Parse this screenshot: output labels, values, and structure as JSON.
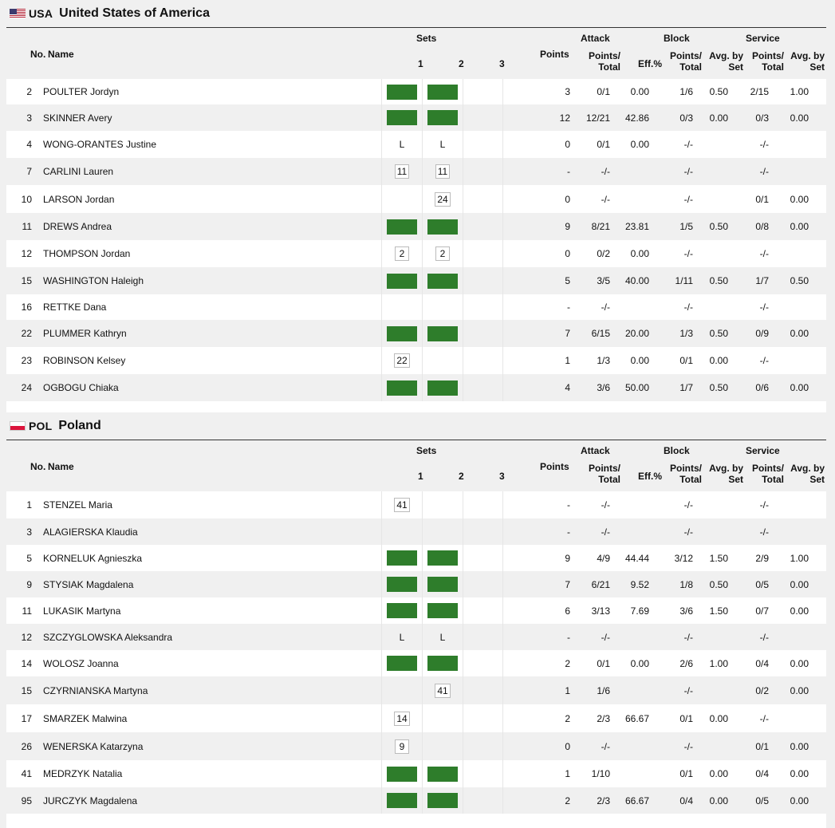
{
  "headers": {
    "no": "No.",
    "name": "Name",
    "sets": "Sets",
    "set1": "1",
    "set2": "2",
    "set3": "3",
    "points": "Points",
    "attack": "Attack",
    "attack_pt": "Points/",
    "attack_pt2": "Total",
    "eff": "Eff.%",
    "block": "Block",
    "block_pt": "Points/",
    "block_pt2": "Total",
    "block_avg": "Avg. by",
    "block_avg2": "Set",
    "service": "Service",
    "service_pt": "Points/",
    "service_pt2": "Total",
    "service_avg": "Avg. by",
    "service_avg2": "Set"
  },
  "teams": [
    {
      "code": "USA",
      "name": "United States of America",
      "flag": "flag-usa",
      "rows": [
        {
          "no": "2",
          "name": "POULTER Jordyn",
          "s1": {
            "t": "bar"
          },
          "s2": {
            "t": "bar"
          },
          "s3": {
            "t": ""
          },
          "points": "3",
          "att": "0/1",
          "eff": "0.00",
          "blk": "1/6",
          "blkavg": "0.50",
          "srv": "2/15",
          "srvavg": "1.00"
        },
        {
          "no": "3",
          "name": "SKINNER Avery",
          "s1": {
            "t": "bar"
          },
          "s2": {
            "t": "bar"
          },
          "s3": {
            "t": ""
          },
          "points": "12",
          "att": "12/21",
          "eff": "42.86",
          "blk": "0/3",
          "blkavg": "0.00",
          "srv": "0/3",
          "srvavg": "0.00"
        },
        {
          "no": "4",
          "name": "WONG-ORANTES Justine",
          "s1": {
            "t": "lib",
            "v": "L"
          },
          "s2": {
            "t": "lib",
            "v": "L"
          },
          "s3": {
            "t": ""
          },
          "points": "0",
          "att": "0/1",
          "eff": "0.00",
          "blk": "-/-",
          "blkavg": "",
          "srv": "-/-",
          "srvavg": ""
        },
        {
          "no": "7",
          "name": "CARLINI Lauren",
          "s1": {
            "t": "box",
            "v": "11"
          },
          "s2": {
            "t": "box",
            "v": "11"
          },
          "s3": {
            "t": ""
          },
          "points": "-",
          "att": "-/-",
          "eff": "",
          "blk": "-/-",
          "blkavg": "",
          "srv": "-/-",
          "srvavg": ""
        },
        {
          "no": "10",
          "name": "LARSON Jordan",
          "s1": {
            "t": ""
          },
          "s2": {
            "t": "box",
            "v": "24"
          },
          "s3": {
            "t": ""
          },
          "points": "0",
          "att": "-/-",
          "eff": "",
          "blk": "-/-",
          "blkavg": "",
          "srv": "0/1",
          "srvavg": "0.00"
        },
        {
          "no": "11",
          "name": "DREWS Andrea",
          "s1": {
            "t": "bar"
          },
          "s2": {
            "t": "bar"
          },
          "s3": {
            "t": ""
          },
          "points": "9",
          "att": "8/21",
          "eff": "23.81",
          "blk": "1/5",
          "blkavg": "0.50",
          "srv": "0/8",
          "srvavg": "0.00"
        },
        {
          "no": "12",
          "name": "THOMPSON Jordan",
          "s1": {
            "t": "box",
            "v": "2"
          },
          "s2": {
            "t": "box",
            "v": "2"
          },
          "s3": {
            "t": ""
          },
          "points": "0",
          "att": "0/2",
          "eff": "0.00",
          "blk": "-/-",
          "blkavg": "",
          "srv": "-/-",
          "srvavg": ""
        },
        {
          "no": "15",
          "name": "WASHINGTON Haleigh",
          "s1": {
            "t": "bar"
          },
          "s2": {
            "t": "bar"
          },
          "s3": {
            "t": ""
          },
          "points": "5",
          "att": "3/5",
          "eff": "40.00",
          "blk": "1/11",
          "blkavg": "0.50",
          "srv": "1/7",
          "srvavg": "0.50"
        },
        {
          "no": "16",
          "name": "RETTKE Dana",
          "s1": {
            "t": ""
          },
          "s2": {
            "t": ""
          },
          "s3": {
            "t": ""
          },
          "points": "-",
          "att": "-/-",
          "eff": "",
          "blk": "-/-",
          "blkavg": "",
          "srv": "-/-",
          "srvavg": ""
        },
        {
          "no": "22",
          "name": "PLUMMER Kathryn",
          "s1": {
            "t": "bar"
          },
          "s2": {
            "t": "bar"
          },
          "s3": {
            "t": ""
          },
          "points": "7",
          "att": "6/15",
          "eff": "20.00",
          "blk": "1/3",
          "blkavg": "0.50",
          "srv": "0/9",
          "srvavg": "0.00"
        },
        {
          "no": "23",
          "name": "ROBINSON Kelsey",
          "s1": {
            "t": "box",
            "v": "22"
          },
          "s2": {
            "t": ""
          },
          "s3": {
            "t": ""
          },
          "points": "1",
          "att": "1/3",
          "eff": "0.00",
          "blk": "0/1",
          "blkavg": "0.00",
          "srv": "-/-",
          "srvavg": ""
        },
        {
          "no": "24",
          "name": "OGBOGU Chiaka",
          "s1": {
            "t": "bar"
          },
          "s2": {
            "t": "bar"
          },
          "s3": {
            "t": ""
          },
          "points": "4",
          "att": "3/6",
          "eff": "50.00",
          "blk": "1/7",
          "blkavg": "0.50",
          "srv": "0/6",
          "srvavg": "0.00"
        }
      ]
    },
    {
      "code": "POL",
      "name": "Poland",
      "flag": "flag-pol",
      "rows": [
        {
          "no": "1",
          "name": "STENZEL Maria",
          "s1": {
            "t": "box",
            "v": "41"
          },
          "s2": {
            "t": ""
          },
          "s3": {
            "t": ""
          },
          "points": "-",
          "att": "-/-",
          "eff": "",
          "blk": "-/-",
          "blkavg": "",
          "srv": "-/-",
          "srvavg": ""
        },
        {
          "no": "3",
          "name": "ALAGIERSKA Klaudia",
          "s1": {
            "t": ""
          },
          "s2": {
            "t": ""
          },
          "s3": {
            "t": ""
          },
          "points": "-",
          "att": "-/-",
          "eff": "",
          "blk": "-/-",
          "blkavg": "",
          "srv": "-/-",
          "srvavg": ""
        },
        {
          "no": "5",
          "name": "KORNELUK Agnieszka",
          "s1": {
            "t": "bar"
          },
          "s2": {
            "t": "bar"
          },
          "s3": {
            "t": ""
          },
          "points": "9",
          "att": "4/9",
          "eff": "44.44",
          "blk": "3/12",
          "blkavg": "1.50",
          "srv": "2/9",
          "srvavg": "1.00"
        },
        {
          "no": "9",
          "name": "STYSIAK Magdalena",
          "s1": {
            "t": "bar"
          },
          "s2": {
            "t": "bar"
          },
          "s3": {
            "t": ""
          },
          "points": "7",
          "att": "6/21",
          "eff": "9.52",
          "blk": "1/8",
          "blkavg": "0.50",
          "srv": "0/5",
          "srvavg": "0.00"
        },
        {
          "no": "11",
          "name": "LUKASIK Martyna",
          "s1": {
            "t": "bar"
          },
          "s2": {
            "t": "bar"
          },
          "s3": {
            "t": ""
          },
          "points": "6",
          "att": "3/13",
          "eff": "7.69",
          "blk": "3/6",
          "blkavg": "1.50",
          "srv": "0/7",
          "srvavg": "0.00"
        },
        {
          "no": "12",
          "name": "SZCZYGLOWSKA Aleksandra",
          "s1": {
            "t": "lib",
            "v": "L"
          },
          "s2": {
            "t": "lib",
            "v": "L"
          },
          "s3": {
            "t": ""
          },
          "points": "-",
          "att": "-/-",
          "eff": "",
          "blk": "-/-",
          "blkavg": "",
          "srv": "-/-",
          "srvavg": ""
        },
        {
          "no": "14",
          "name": "WOLOSZ Joanna",
          "s1": {
            "t": "bar"
          },
          "s2": {
            "t": "bar"
          },
          "s3": {
            "t": ""
          },
          "points": "2",
          "att": "0/1",
          "eff": "0.00",
          "blk": "2/6",
          "blkavg": "1.00",
          "srv": "0/4",
          "srvavg": "0.00"
        },
        {
          "no": "15",
          "name": "CZYRNIANSKA Martyna",
          "s1": {
            "t": ""
          },
          "s2": {
            "t": "box",
            "v": "41"
          },
          "s3": {
            "t": ""
          },
          "points": "1",
          "att": "1/6",
          "eff": "",
          "blk": "-/-",
          "blkavg": "",
          "srv": "0/2",
          "srvavg": "0.00"
        },
        {
          "no": "17",
          "name": "SMARZEK Malwina",
          "s1": {
            "t": "box",
            "v": "14"
          },
          "s2": {
            "t": ""
          },
          "s3": {
            "t": ""
          },
          "points": "2",
          "att": "2/3",
          "eff": "66.67",
          "blk": "0/1",
          "blkavg": "0.00",
          "srv": "-/-",
          "srvavg": ""
        },
        {
          "no": "26",
          "name": "WENERSKA Katarzyna",
          "s1": {
            "t": "box",
            "v": "9"
          },
          "s2": {
            "t": ""
          },
          "s3": {
            "t": ""
          },
          "points": "0",
          "att": "-/-",
          "eff": "",
          "blk": "-/-",
          "blkavg": "",
          "srv": "0/1",
          "srvavg": "0.00"
        },
        {
          "no": "41",
          "name": "MEDRZYK Natalia",
          "s1": {
            "t": "bar"
          },
          "s2": {
            "t": "bar"
          },
          "s3": {
            "t": ""
          },
          "points": "1",
          "att": "1/10",
          "eff": "",
          "blk": "0/1",
          "blkavg": "0.00",
          "srv": "0/4",
          "srvavg": "0.00"
        },
        {
          "no": "95",
          "name": "JURCZYK Magdalena",
          "s1": {
            "t": "bar"
          },
          "s2": {
            "t": "bar"
          },
          "s3": {
            "t": ""
          },
          "points": "2",
          "att": "2/3",
          "eff": "66.67",
          "blk": "0/4",
          "blkavg": "0.00",
          "srv": "0/5",
          "srvavg": "0.00"
        }
      ]
    }
  ]
}
